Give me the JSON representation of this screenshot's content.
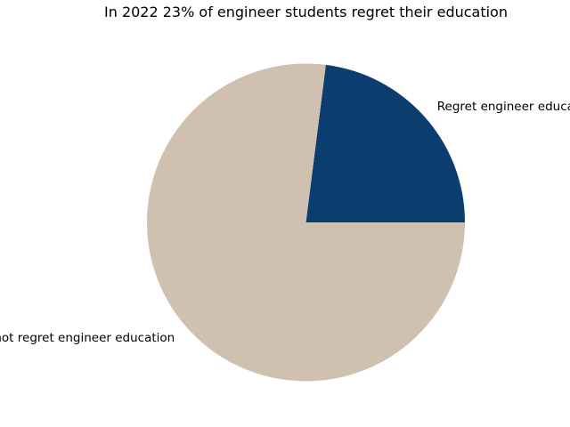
{
  "chart_data": {
    "type": "pie",
    "title": "In 2022 23% of engineer students regret their education",
    "slices": [
      {
        "label": "Regret engineer education",
        "value": 23,
        "color": "#0b3d6e"
      },
      {
        "label": "Do not regret engineer education",
        "value": 77,
        "color": "#cfc0b0"
      }
    ],
    "start_angle_deg": 0,
    "direction": "counterclockwise",
    "legend": false
  }
}
